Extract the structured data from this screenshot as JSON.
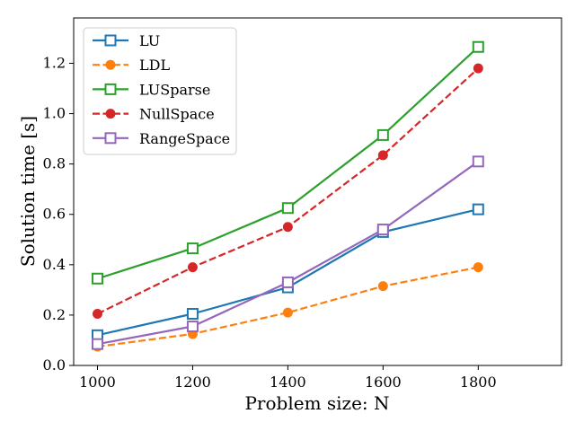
{
  "chart_data": {
    "type": "line",
    "title": "",
    "xlabel": "Problem size:  N",
    "ylabel": "Solution time [s]",
    "x": [
      1000,
      1200,
      1400,
      1600,
      1800
    ],
    "xlim": [
      950,
      1975
    ],
    "ylim": [
      0.0,
      1.38
    ],
    "xticks": [
      1000,
      1200,
      1400,
      1600,
      1800
    ],
    "yticks": [
      0.0,
      0.2,
      0.4,
      0.6,
      0.8,
      1.0,
      1.2
    ],
    "ytick_labels": [
      "0.0",
      "0.2",
      "0.4",
      "0.6",
      "0.8",
      "1.0",
      "1.2"
    ],
    "grid": false,
    "legend_position": "top-left",
    "series": [
      {
        "name": "LU",
        "values": [
          0.12,
          0.205,
          0.31,
          0.53,
          0.62
        ],
        "color": "#1f77b4",
        "dash": "solid",
        "marker": "square-open"
      },
      {
        "name": "LDL",
        "values": [
          0.075,
          0.125,
          0.21,
          0.315,
          0.39
        ],
        "color": "#ff7f0e",
        "dash": "dashed",
        "marker": "circle-filled"
      },
      {
        "name": "LUSparse",
        "values": [
          0.345,
          0.465,
          0.625,
          0.915,
          1.265
        ],
        "color": "#2ca02c",
        "dash": "solid",
        "marker": "square-open"
      },
      {
        "name": "NullSpace",
        "values": [
          0.205,
          0.39,
          0.55,
          0.835,
          1.18
        ],
        "color": "#d62728",
        "dash": "dashed",
        "marker": "circle-filled"
      },
      {
        "name": "RangeSpace",
        "values": [
          0.085,
          0.155,
          0.33,
          0.54,
          0.81
        ],
        "color": "#9467bd",
        "dash": "solid",
        "marker": "square-open"
      }
    ]
  }
}
